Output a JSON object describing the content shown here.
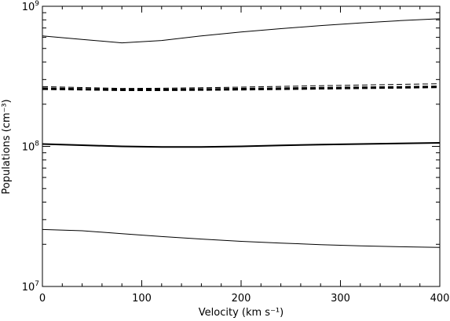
{
  "chart_data": {
    "type": "line",
    "title": "",
    "xlabel": "Velocity (km s⁻¹)",
    "ylabel": "Populations (cm⁻³)",
    "xlim": [
      0,
      400
    ],
    "ylim": [
      10000000,
      1000000000
    ],
    "yscale": "log",
    "grid": false,
    "legend": "none",
    "x_ticks": [
      0,
      100,
      200,
      300,
      400
    ],
    "x_tick_labels": [
      "0",
      "100",
      "200",
      "300",
      "400"
    ],
    "y_ticks": [
      10000000,
      100000000,
      1000000000
    ],
    "y_tick_labels": [
      {
        "base": "10",
        "exp": "7"
      },
      {
        "base": "10",
        "exp": "8"
      },
      {
        "base": "10",
        "exp": "9"
      }
    ],
    "series": [
      {
        "style": "solid",
        "weight": "thin",
        "x": [
          0,
          40,
          80,
          120,
          160,
          200,
          240,
          280,
          320,
          360,
          400
        ],
        "y": [
          615000000,
          580000000,
          548000000,
          570000000,
          615000000,
          655000000,
          692000000,
          728000000,
          760000000,
          790000000,
          815000000
        ]
      },
      {
        "style": "dashed",
        "weight": "thin",
        "x": [
          0,
          40,
          80,
          120,
          160,
          200,
          240,
          280,
          320,
          360,
          400
        ],
        "y": [
          267000000,
          263000000,
          259000000,
          260000000,
          262000000,
          265000000,
          268000000,
          271000000,
          274000000,
          277000000,
          280000000
        ]
      },
      {
        "style": "dashed",
        "weight": "thick",
        "x": [
          0,
          40,
          80,
          120,
          160,
          200,
          240,
          280,
          320,
          360,
          400
        ],
        "y": [
          260000000,
          257000000,
          255000000,
          255000000,
          256000000,
          258000000,
          260000000,
          262000000,
          264000000,
          266000000,
          268000000
        ]
      },
      {
        "style": "dashed",
        "weight": "medium",
        "x": [
          0,
          40,
          80,
          120,
          160,
          200,
          240,
          280,
          320,
          360,
          400
        ],
        "y": [
          255000000,
          253000000,
          251000000,
          251000000,
          252000000,
          253000000,
          255000000,
          257000000,
          259000000,
          261000000,
          263000000
        ]
      },
      {
        "style": "solid",
        "weight": "thick",
        "x": [
          0,
          40,
          80,
          120,
          160,
          200,
          240,
          280,
          320,
          360,
          400
        ],
        "y": [
          104000000,
          102000000,
          100000000,
          99000000,
          99000000,
          100000000,
          101500000,
          103000000,
          104000000,
          105000000,
          106000000
        ]
      },
      {
        "style": "solid",
        "weight": "thin",
        "x": [
          0,
          40,
          80,
          120,
          160,
          200,
          240,
          280,
          320,
          360,
          400
        ],
        "y": [
          25500000,
          25000000,
          23800000,
          22700000,
          21800000,
          21000000,
          20400000,
          19900000,
          19500000,
          19200000,
          19000000
        ]
      }
    ]
  }
}
